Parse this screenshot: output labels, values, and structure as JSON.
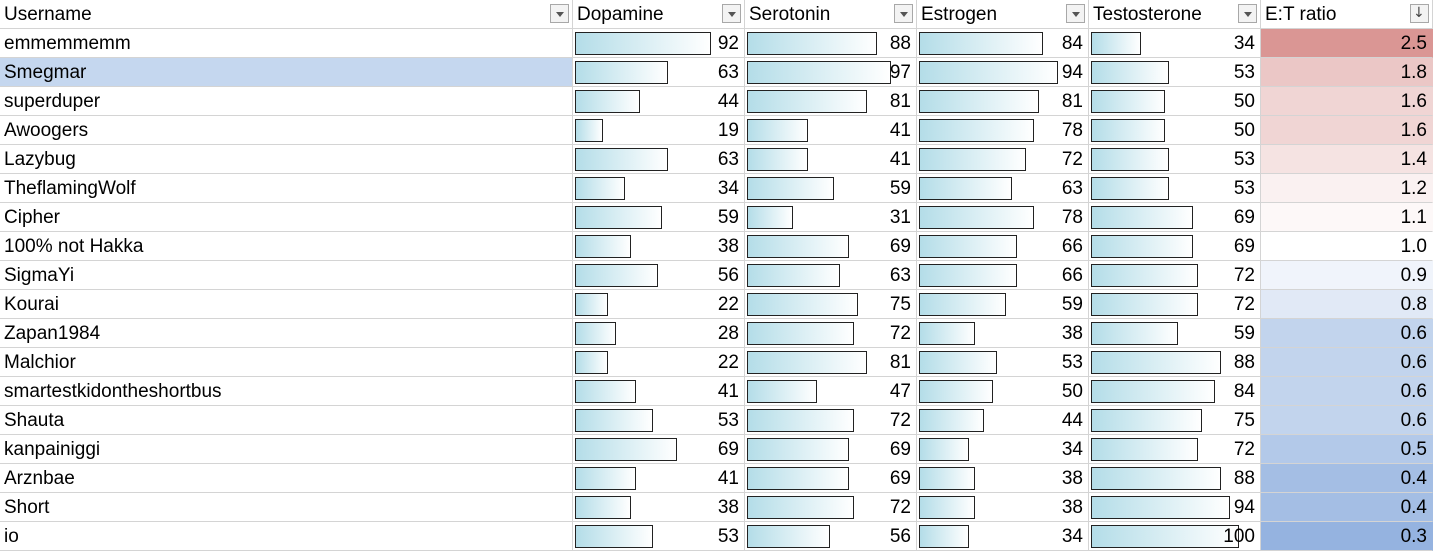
{
  "headers": {
    "username": "Username",
    "dopamine": "Dopamine",
    "serotonin": "Serotonin",
    "estrogen": "Estrogen",
    "testosterone": "Testosterone",
    "ratio": "E:T ratio"
  },
  "sort_indicator": "↓",
  "bar_max": 100,
  "colors": {
    "bar_start": "#b4dde8",
    "bar_end": "#ffffff",
    "selected_row": "#c5d7ef",
    "ratio_high": "#da9694",
    "ratio_mid": "#ffffff",
    "ratio_low": "#95b3e0"
  },
  "selected_row_index": 1,
  "rows": [
    {
      "username": "emmemmemm",
      "dopamine": 92,
      "serotonin": 88,
      "estrogen": 84,
      "testosterone": 34,
      "ratio": "2.5"
    },
    {
      "username": "Smegmar",
      "dopamine": 63,
      "serotonin": 97,
      "estrogen": 94,
      "testosterone": 53,
      "ratio": "1.8"
    },
    {
      "username": "superduper",
      "dopamine": 44,
      "serotonin": 81,
      "estrogen": 81,
      "testosterone": 50,
      "ratio": "1.6"
    },
    {
      "username": "Awoogers",
      "dopamine": 19,
      "serotonin": 41,
      "estrogen": 78,
      "testosterone": 50,
      "ratio": "1.6"
    },
    {
      "username": "Lazybug",
      "dopamine": 63,
      "serotonin": 41,
      "estrogen": 72,
      "testosterone": 53,
      "ratio": "1.4"
    },
    {
      "username": "TheflamingWolf",
      "dopamine": 34,
      "serotonin": 59,
      "estrogen": 63,
      "testosterone": 53,
      "ratio": "1.2"
    },
    {
      "username": "Cipher",
      "dopamine": 59,
      "serotonin": 31,
      "estrogen": 78,
      "testosterone": 69,
      "ratio": "1.1"
    },
    {
      "username": "100% not Hakka",
      "dopamine": 38,
      "serotonin": 69,
      "estrogen": 66,
      "testosterone": 69,
      "ratio": "1.0"
    },
    {
      "username": "SigmaYi",
      "dopamine": 56,
      "serotonin": 63,
      "estrogen": 66,
      "testosterone": 72,
      "ratio": "0.9"
    },
    {
      "username": "Kourai",
      "dopamine": 22,
      "serotonin": 75,
      "estrogen": 59,
      "testosterone": 72,
      "ratio": "0.8"
    },
    {
      "username": "Zapan1984",
      "dopamine": 28,
      "serotonin": 72,
      "estrogen": 38,
      "testosterone": 59,
      "ratio": "0.6"
    },
    {
      "username": "Malchior",
      "dopamine": 22,
      "serotonin": 81,
      "estrogen": 53,
      "testosterone": 88,
      "ratio": "0.6"
    },
    {
      "username": "smartestkidontheshortbus",
      "dopamine": 41,
      "serotonin": 47,
      "estrogen": 50,
      "testosterone": 84,
      "ratio": "0.6"
    },
    {
      "username": "Shauta",
      "dopamine": 53,
      "serotonin": 72,
      "estrogen": 44,
      "testosterone": 75,
      "ratio": "0.6"
    },
    {
      "username": "kanpainiggi",
      "dopamine": 69,
      "serotonin": 69,
      "estrogen": 34,
      "testosterone": 72,
      "ratio": "0.5"
    },
    {
      "username": "Arznbae",
      "dopamine": 41,
      "serotonin": 69,
      "estrogen": 38,
      "testosterone": 88,
      "ratio": "0.4"
    },
    {
      "username": "Short",
      "dopamine": 38,
      "serotonin": 72,
      "estrogen": 38,
      "testosterone": 94,
      "ratio": "0.4"
    },
    {
      "username": "io",
      "dopamine": 53,
      "serotonin": 56,
      "estrogen": 34,
      "testosterone": 100,
      "ratio": "0.3"
    }
  ]
}
